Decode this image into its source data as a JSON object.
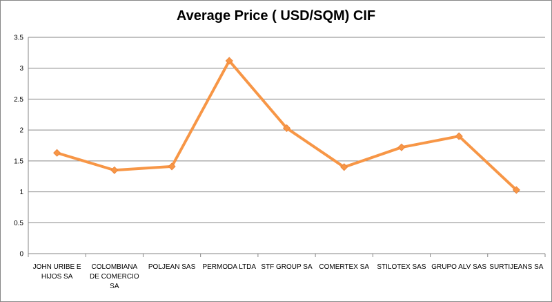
{
  "chart_data": {
    "type": "line",
    "title": "Average Price ( USD/SQM) CIF",
    "xlabel": "",
    "ylabel": "",
    "categories": [
      [
        "JOHN URIBE  E",
        "HIJOS SA"
      ],
      [
        "COLOMBIANA",
        "DE COMERCIO",
        "SA"
      ],
      [
        "POLJEAN SAS"
      ],
      [
        "PERMODA LTDA"
      ],
      [
        "STF GROUP  SA"
      ],
      [
        "COMERTEX SA"
      ],
      [
        "STILOTEX SAS"
      ],
      [
        "GRUPO ALV SAS"
      ],
      [
        "SURTIJEANS  SA"
      ]
    ],
    "series": [
      {
        "values": [
          1.63,
          1.35,
          1.41,
          3.12,
          2.03,
          1.4,
          1.72,
          1.9,
          1.03
        ]
      }
    ],
    "ylim": [
      0,
      3.5
    ],
    "yticks": [
      "0",
      "0.5",
      "1",
      "1.5",
      "2",
      "2.5",
      "3",
      "3.5"
    ],
    "grid": true,
    "legend": "none",
    "colors": {
      "line": "#F79646",
      "marker": "#F79646",
      "grid": "#868686",
      "axis": "#868686"
    }
  }
}
